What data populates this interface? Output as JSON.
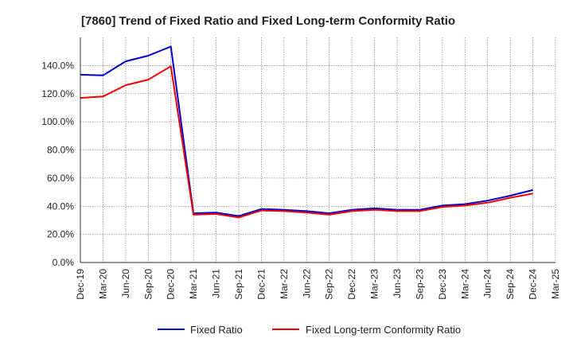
{
  "chart_data": {
    "type": "line",
    "title": "[7860]  Trend of Fixed Ratio and Fixed Long-term Conformity Ratio",
    "xlabel": "",
    "ylabel": "",
    "ylim": [
      0,
      160
    ],
    "y_ticks": [
      "0.0%",
      "20.0%",
      "40.0%",
      "60.0%",
      "80.0%",
      "100.0%",
      "120.0%",
      "140.0%"
    ],
    "x_ticks": [
      "Dec-19",
      "Mar-20",
      "Jun-20",
      "Sep-20",
      "Dec-20",
      "Mar-21",
      "Jun-21",
      "Sep-21",
      "Dec-21",
      "Mar-22",
      "Jun-22",
      "Sep-22",
      "Dec-22",
      "Mar-23",
      "Jun-23",
      "Sep-23",
      "Dec-23",
      "Mar-24",
      "Jun-24",
      "Sep-24",
      "Dec-24",
      "Mar-25"
    ],
    "x": [
      "Dec-19",
      "Mar-20",
      "Jun-20",
      "Sep-20",
      "Dec-20",
      "Mar-21",
      "Jun-21",
      "Sep-21",
      "Dec-21",
      "Mar-22",
      "Jun-22",
      "Sep-22",
      "Dec-22",
      "Mar-23",
      "Jun-23",
      "Sep-23",
      "Dec-23",
      "Mar-24",
      "Jun-24",
      "Sep-24",
      "Dec-24"
    ],
    "grid": true,
    "legend_position": "bottom",
    "series": [
      {
        "name": "Fixed Ratio",
        "color": "#0000cc",
        "values": [
          133.5,
          133.0,
          143.0,
          147.0,
          153.5,
          35.0,
          35.5,
          33.0,
          38.0,
          37.5,
          36.5,
          35.0,
          37.5,
          38.5,
          37.5,
          37.5,
          40.5,
          41.5,
          44.0,
          47.5,
          51.5
        ]
      },
      {
        "name": "Fixed Long-term Conformity Ratio",
        "color": "#ee0000",
        "values": [
          117.0,
          118.0,
          126.0,
          130.0,
          139.5,
          34.0,
          34.5,
          32.0,
          37.0,
          36.5,
          35.5,
          34.0,
          36.5,
          37.5,
          36.5,
          36.5,
          39.5,
          40.5,
          42.5,
          46.0,
          49.0
        ]
      }
    ]
  }
}
